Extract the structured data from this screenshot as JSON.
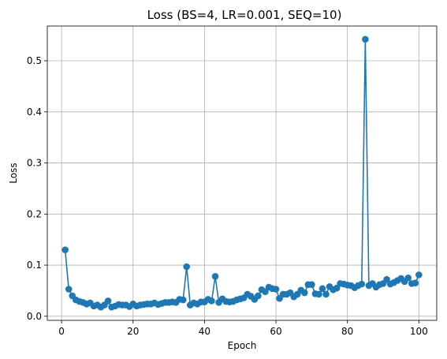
{
  "chart_data": {
    "type": "line",
    "title": "Loss (BS=4, LR=0.001, SEQ=10)",
    "xlabel": "Epoch",
    "ylabel": "Loss",
    "xlim": [
      -4,
      105
    ],
    "ylim": [
      -0.008,
      0.568
    ],
    "xticks": [
      0,
      20,
      40,
      60,
      80,
      100
    ],
    "yticks": [
      0.0,
      0.1,
      0.2,
      0.3,
      0.4,
      0.5
    ],
    "xtick_labels": [
      "0",
      "20",
      "40",
      "60",
      "80",
      "100"
    ],
    "ytick_labels": [
      "0.0",
      "0.1",
      "0.2",
      "0.3",
      "0.4",
      "0.5"
    ],
    "grid": true,
    "color": "#1f77b4",
    "marker": "circle",
    "series": [
      {
        "x": [
          1,
          2,
          3,
          4,
          5,
          6,
          7,
          8,
          9,
          10,
          11,
          12,
          13,
          14,
          15,
          16,
          17,
          18,
          19,
          20,
          21,
          22,
          23,
          24,
          25,
          26,
          27,
          28,
          29,
          30,
          31,
          32,
          33,
          34,
          35,
          36,
          37,
          38,
          39,
          40,
          41,
          42,
          43,
          44,
          45,
          46,
          47,
          48,
          49,
          50,
          51,
          52,
          53,
          54,
          55,
          56,
          57,
          58,
          59,
          60,
          61,
          62,
          63,
          64,
          65,
          66,
          67,
          68,
          69,
          70,
          71,
          72,
          73,
          74,
          75,
          76,
          77,
          78,
          79,
          80,
          81,
          82,
          83,
          84,
          85,
          86,
          87,
          88,
          89,
          90,
          91,
          92,
          93,
          94,
          95,
          96,
          97,
          98,
          99,
          100
        ],
        "values": [
          0.13,
          0.053,
          0.04,
          0.032,
          0.029,
          0.027,
          0.024,
          0.026,
          0.02,
          0.022,
          0.018,
          0.022,
          0.03,
          0.018,
          0.02,
          0.023,
          0.022,
          0.022,
          0.019,
          0.024,
          0.02,
          0.022,
          0.023,
          0.024,
          0.024,
          0.026,
          0.023,
          0.025,
          0.027,
          0.027,
          0.028,
          0.027,
          0.033,
          0.032,
          0.097,
          0.022,
          0.026,
          0.024,
          0.028,
          0.028,
          0.033,
          0.03,
          0.078,
          0.027,
          0.034,
          0.029,
          0.028,
          0.029,
          0.032,
          0.034,
          0.036,
          0.043,
          0.039,
          0.033,
          0.04,
          0.052,
          0.048,
          0.057,
          0.054,
          0.053,
          0.035,
          0.043,
          0.043,
          0.046,
          0.038,
          0.043,
          0.051,
          0.046,
          0.062,
          0.062,
          0.044,
          0.043,
          0.054,
          0.043,
          0.058,
          0.052,
          0.055,
          0.064,
          0.063,
          0.061,
          0.06,
          0.056,
          0.06,
          0.063,
          0.542,
          0.06,
          0.064,
          0.057,
          0.062,
          0.064,
          0.072,
          0.063,
          0.066,
          0.07,
          0.074,
          0.068,
          0.075,
          0.064,
          0.065,
          0.081
        ]
      }
    ]
  }
}
